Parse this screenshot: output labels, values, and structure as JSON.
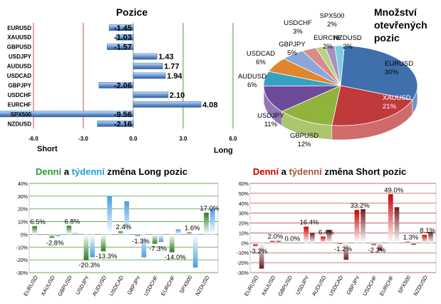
{
  "colors": {
    "green": "#2e9a2e",
    "blue": "#1fa0d8",
    "red": "#cc0000",
    "brown": "#a0522d",
    "bar_blue": "#5b8fd0",
    "gridline_red": "#c0504d",
    "gridline_green": "#4e9a35"
  },
  "chart_data": [
    {
      "type": "bar",
      "orientation": "horizontal",
      "title": "Pozice",
      "categories": [
        "EURUSD",
        "XAUUSD",
        "GBPUSD",
        "USDJPY",
        "AUDUSD",
        "USDCAD",
        "GBPJPY",
        "USDCHF",
        "EURCHF",
        "SPX500",
        "NZDUSD"
      ],
      "values": [
        -1.45,
        -1.03,
        -1.57,
        1.43,
        1.77,
        1.94,
        -2.06,
        2.1,
        4.08,
        -9.56,
        -2.16
      ],
      "value_labels": [
        "-1.45",
        "-1.03",
        "-1.57",
        "1.43",
        "1.77",
        "1.94",
        "-2.06",
        "2.10",
        "4.08",
        "-9.56",
        "-2.16"
      ],
      "xlim": [
        -6,
        6
      ],
      "xticks": [
        "-6.0",
        "-3.0",
        "0.0",
        "3.0",
        "6.0"
      ],
      "left_label": "Short",
      "right_label": "Long"
    },
    {
      "type": "pie",
      "title_lines": [
        "Množství",
        "otevřených",
        "pozic"
      ],
      "slices": [
        {
          "name": "EURUSD",
          "value": 30,
          "label": "30%",
          "color": "#3f6fad"
        },
        {
          "name": "XAUUSD",
          "value": 21,
          "label": "21%",
          "color": "#c0393b"
        },
        {
          "name": "GBPUSD",
          "value": 12,
          "label": "12%",
          "color": "#8fb33c"
        },
        {
          "name": "USDJPY",
          "value": 11,
          "label": "11%",
          "color": "#6d4a9a"
        },
        {
          "name": "AUDUSD",
          "value": 6,
          "label": "6%",
          "color": "#3aa0c3"
        },
        {
          "name": "USDCAD",
          "value": 6,
          "label": "6%",
          "color": "#e0862e"
        },
        {
          "name": "GBPJPY",
          "value": 5,
          "label": "5%",
          "color": "#8ba7d6"
        },
        {
          "name": "USDCHF",
          "value": 3,
          "label": "3%",
          "color": "#d98a89"
        },
        {
          "name": "SPX500",
          "value": 2,
          "label": "2%",
          "color": "#b9d183"
        },
        {
          "name": "EURCHF",
          "value": 2,
          "label": "2%",
          "color": "#a592c2"
        },
        {
          "name": "NZDUSD",
          "value": 2,
          "label": "2%",
          "color": "#7fcbe0"
        }
      ]
    },
    {
      "type": "bar",
      "title_parts": [
        "Denní",
        " a ",
        "týdenní",
        " změna Long pozic"
      ],
      "categories": [
        "EURUSD",
        "XAUUSD",
        "GBPUSD",
        "USDJPY",
        "AUDUSD",
        "USDCAD",
        "GBPJPY",
        "USDCHF",
        "EURCHF",
        "SPX500",
        "NZDUSD"
      ],
      "series": [
        {
          "name": "Denní",
          "values": [
            6.5,
            -2.8,
            6.8,
            -20.3,
            -13.3,
            2.4,
            -1.3,
            -7.3,
            -14.0,
            1.6,
            17.0
          ]
        },
        {
          "name": "týdenní",
          "values": [
            -0.5,
            -1.5,
            1.0,
            -18.0,
            30.0,
            26.0,
            -18.0,
            -6.0,
            4.0,
            -26.0,
            20.0
          ]
        }
      ],
      "data_labels": [
        "6.5%",
        "-2.8%",
        "6.8%",
        "-20.3%",
        "-13.3%",
        "2.4%",
        "-1.3%",
        "-7.3%",
        "-14.0%",
        "1.6%",
        "17.0%"
      ],
      "ylim": [
        -30,
        40
      ],
      "yticks": [
        "-30%",
        "-20%",
        "-10%",
        "0%",
        "10%",
        "20%",
        "30%",
        "40%"
      ]
    },
    {
      "type": "bar",
      "title_parts": [
        "Denní",
        " a ",
        "týdenní",
        " změna Short pozic"
      ],
      "categories": [
        "EURUSD",
        "XAUUSD",
        "GBPUSD",
        "USDJPY",
        "AUDUSD",
        "USDCAD",
        "GBPJPY",
        "USDCHF",
        "EURCHF",
        "SPX500",
        "NZDUSD"
      ],
      "series": [
        {
          "name": "Denní",
          "values": [
            -3.2,
            2.0,
            0.0,
            16.4,
            6.4,
            -1.2,
            33.2,
            -2.2,
            49.0,
            1.3,
            8.1
          ]
        },
        {
          "name": "týdenní",
          "values": [
            -26.0,
            2.0,
            0.0,
            10.0,
            13.0,
            -17.0,
            34.0,
            -8.0,
            36.0,
            -2.0,
            11.0
          ]
        }
      ],
      "data_labels": [
        "-3.2%",
        "2.0%",
        "0.0%",
        "16.4%",
        "6.4%",
        "-1.2%",
        "33.2%",
        "-2.2%",
        "49.0%",
        "1.3%",
        "8.1%"
      ],
      "ylim": [
        -30,
        60
      ],
      "yticks": [
        "-30%",
        "-20%",
        "-10%",
        "0%",
        "10%",
        "20%",
        "30%",
        "40%",
        "50%",
        "60%"
      ]
    }
  ]
}
